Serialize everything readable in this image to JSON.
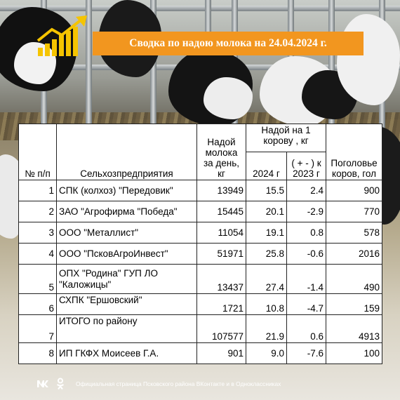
{
  "header": {
    "title": "Сводка по надою молока на 24.04.2024 г."
  },
  "table": {
    "headers": {
      "num": "№ п/п",
      "name": "Сельхозпредприятия",
      "milk_per_day": "Надой молока за день, кг",
      "per_cow_group": "Надой на 1 корову , кг",
      "year_2024": "2024 г",
      "vs_2023": "( + - ) к 2023 г",
      "herd": "Поголовье коров, гол"
    },
    "rows": [
      {
        "num": "1",
        "name": "СПК (колхоз) \"Передовик\"",
        "milk": "13949",
        "y2024": "15.5",
        "diff": "2.4",
        "herd": "900"
      },
      {
        "num": "2",
        "name": "ЗАО \"Агрофирма \"Победа\"",
        "milk": "15445",
        "y2024": "20.1",
        "diff": "-2.9",
        "herd": "770"
      },
      {
        "num": "3",
        "name": "ООО \"Металлист\"",
        "milk": "11054",
        "y2024": "19.1",
        "diff": "0.8",
        "herd": "578"
      },
      {
        "num": "4",
        "name": "ООО \"ПсковАгроИнвест\"",
        "milk": "51971",
        "y2024": "25.8",
        "diff": "-0.6",
        "herd": "2016"
      },
      {
        "num": "5",
        "name": "ОПХ \"Родина\" ГУП ЛО \"Каложицы\"",
        "milk": "13437",
        "y2024": "27.4",
        "diff": "-1.4",
        "herd": "490"
      },
      {
        "num": "6",
        "name": "СХПК \"Ершовский\"",
        "milk": "1721",
        "y2024": "10.8",
        "diff": "-4.7",
        "herd": "159"
      },
      {
        "num": "7",
        "name": "ИТОГО по району",
        "milk": "107577",
        "y2024": "21.9",
        "diff": "0.6",
        "herd": "4913"
      },
      {
        "num": "8",
        "name": "ИП ГКФХ Моисеев Г.А.",
        "milk": "901",
        "y2024": "9.0",
        "diff": "-7.6",
        "herd": "100"
      }
    ]
  },
  "footer": {
    "text": "Официальная страница Псковского района ВКонтакте и в Одноклассниках",
    "vk_icon_label": "vk-icon",
    "ok_icon_label": "odnoklassniki-icon"
  },
  "colors": {
    "accent": "#f2961f",
    "logo": "#f5c400"
  }
}
